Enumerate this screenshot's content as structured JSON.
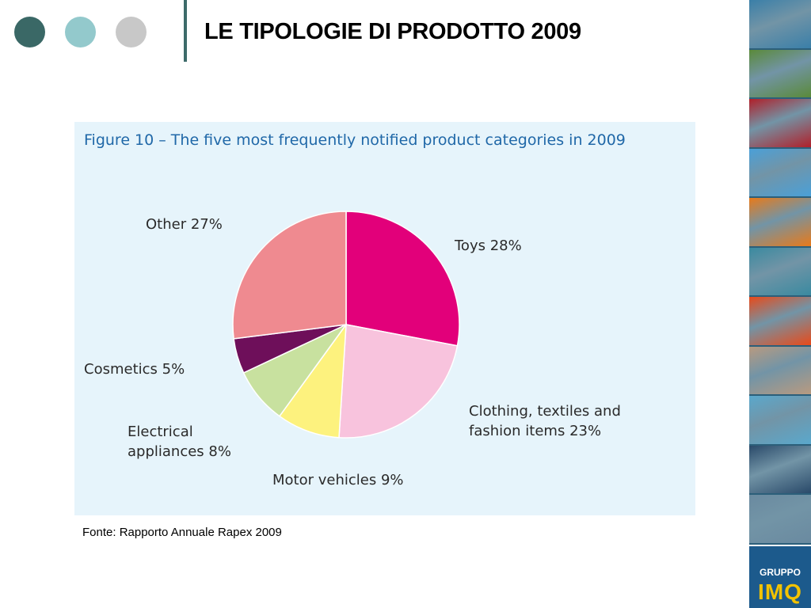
{
  "header": {
    "title": "LE TIPOLOGIE DI PRODOTTO 2009",
    "dot_colors": [
      "#3a6866",
      "#93c9cc",
      "#c8c8c8"
    ]
  },
  "chart_data": {
    "type": "pie",
    "title": "Figure 10 – The five most frequently notified product categories in 2009",
    "slices": [
      {
        "label_lines": [
          "Toys 28%"
        ],
        "value": 28,
        "color": "#e2007a"
      },
      {
        "label_lines": [
          "Clothing, textiles and",
          "fashion items 23%"
        ],
        "value": 23,
        "color": "#f8c3dd"
      },
      {
        "label_lines": [
          "Motor vehicles 9%"
        ],
        "value": 9,
        "color": "#fdf27e"
      },
      {
        "label_lines": [
          "Electrical",
          "appliances 8%"
        ],
        "value": 8,
        "color": "#c8e19f"
      },
      {
        "label_lines": [
          "Cosmetics 5%"
        ],
        "value": 5,
        "color": "#6e0f5a"
      },
      {
        "label_lines": [
          "Other 27%"
        ],
        "value": 27,
        "color": "#ef8a90"
      }
    ],
    "start": "12 o'clock, clockwise"
  },
  "source": "Fonte: Rapporto Annuale Rapex 2009",
  "logo": {
    "top": "GRUPPO",
    "main": "IMQ"
  },
  "side_tiles": [
    {
      "name": "cables-photo",
      "color": "#3a7fa8"
    },
    {
      "name": "plant-photo",
      "color": "#5a8a3a"
    },
    {
      "name": "car-photo",
      "color": "#b0202a"
    },
    {
      "name": "blue-abstract-photo",
      "color": "#4aa0d8"
    },
    {
      "name": "orange-abstract-photo",
      "color": "#e87a1a"
    },
    {
      "name": "water-photo",
      "color": "#3a8aa0"
    },
    {
      "name": "flame-photo",
      "color": "#e84a1a"
    },
    {
      "name": "device-photo",
      "color": "#b89a80"
    },
    {
      "name": "cylinder-photo",
      "color": "#5aa8cc"
    },
    {
      "name": "landscape-photo",
      "color": "#2a4a6a"
    },
    {
      "name": "dishes-photo",
      "color": "#6a8aa0"
    }
  ]
}
